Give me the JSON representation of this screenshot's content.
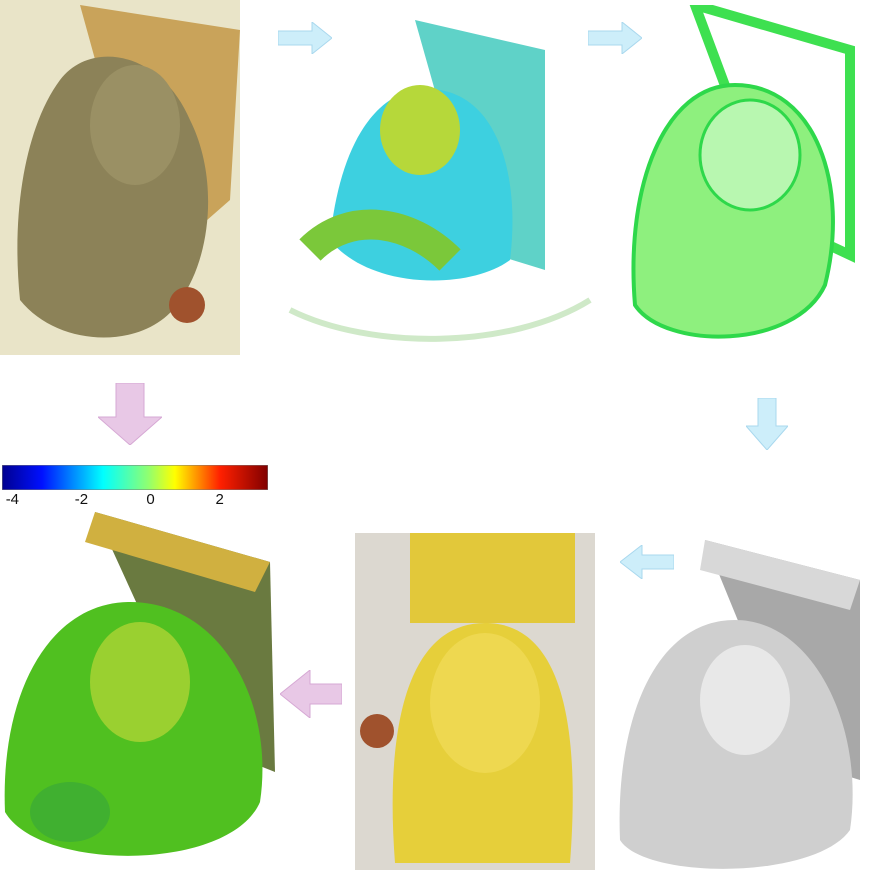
{
  "colorbar": {
    "min": -4.3,
    "max": 3.4,
    "colormap": "jet",
    "ticks": [
      {
        "value": -4,
        "label": "-4"
      },
      {
        "value": -2,
        "label": "-2"
      },
      {
        "value": 0,
        "label": "0"
      },
      {
        "value": 2,
        "label": "2"
      }
    ]
  },
  "panels": [
    {
      "name": "original-carving-photo"
    },
    {
      "name": "colored-scan-point-cloud"
    },
    {
      "name": "merged-green-point-cloud"
    },
    {
      "name": "gray-surface-render"
    },
    {
      "name": "yellow-printed-replica-photo"
    },
    {
      "name": "deviation-heatmap-model"
    }
  ],
  "colors": {
    "flow_arrow_blue": "#cdeefa",
    "compare_arrow_pink": "#e8c8e6"
  }
}
